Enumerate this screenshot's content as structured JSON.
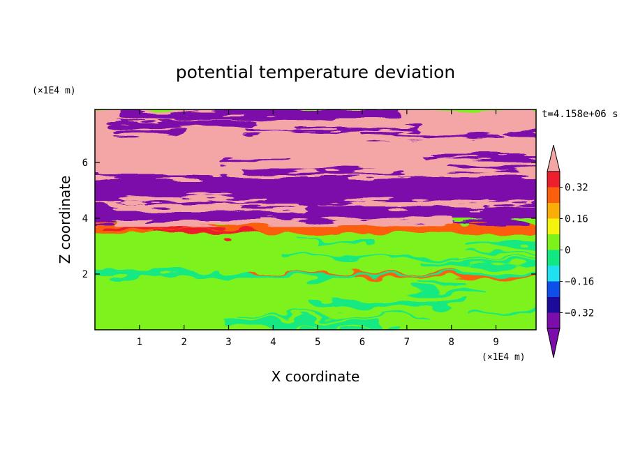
{
  "chart_data": {
    "type": "heatmap",
    "title": "potential temperature deviation",
    "xlabel": "X coordinate",
    "ylabel": "Z coordinate",
    "x_unit": "(×1E4 m)",
    "y_unit": "(×1E4 m)",
    "time_label": "t=4.158e+06 s",
    "xlim": [
      0,
      9.9
    ],
    "ylim": [
      0,
      7.9
    ],
    "x_ticks": [
      1,
      2,
      3,
      4,
      5,
      6,
      7,
      8,
      9
    ],
    "y_ticks": [
      2,
      4,
      6
    ],
    "grid": false,
    "colorbar": {
      "location": "right",
      "levels": [
        -0.4,
        -0.32,
        -0.24,
        -0.16,
        -0.08,
        0,
        0.08,
        0.16,
        0.24,
        0.32,
        0.4
      ],
      "labeled_levels": [
        "0.32",
        "0.16",
        "0",
        "-0.16",
        "-0.32"
      ],
      "colors": [
        "#7b0dab",
        "#1c0a9a",
        "#0d4fe8",
        "#1fe0f0",
        "#12e882",
        "#7df21a",
        "#f3f30e",
        "#f9ad06",
        "#fb5e0c",
        "#ec1f2c"
      ],
      "under_color": "#7b0dab",
      "over_color": "#f4a6a6",
      "extend": "both"
    },
    "field_bands": [
      {
        "z_range": [
          0,
          1.9
        ],
        "dominant_color": "#7df21a",
        "secondary_color": "#12e882",
        "description_level": "~0"
      },
      {
        "z_range": [
          1.9,
          2.1
        ],
        "dominant_color": "#12e882",
        "secondary_color": "#fb5e0c",
        "description_level": "~0"
      },
      {
        "z_range": [
          2.1,
          3.5
        ],
        "dominant_color": "#7df21a",
        "secondary_color": "#12e882",
        "description_level": "~0"
      },
      {
        "z_range": [
          3.5,
          3.9
        ],
        "dominant_color": "#fb5e0c",
        "secondary_color": "#ec1f2c",
        "description_level": "~0.3"
      },
      {
        "z_range": [
          3.9,
          5.5
        ],
        "dominant_color": "#7b0dab",
        "secondary_color": "#f4a6a6",
        "description_level": "mixed"
      },
      {
        "z_range": [
          5.5,
          7.9
        ],
        "dominant_color": "#f4a6a6",
        "secondary_color": "#7b0dab",
        "description_level": "±0.4"
      }
    ]
  }
}
